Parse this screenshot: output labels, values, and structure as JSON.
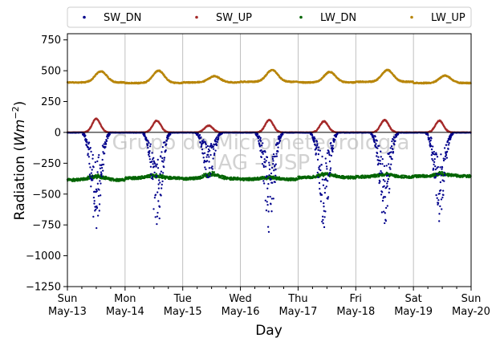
{
  "chart_data": {
    "type": "scatter",
    "xlabel": "Day",
    "ylabel_prefix": "Radiation (",
    "ylabel_unit": "Wm",
    "ylabel_exp": "−2",
    "ylabel_suffix": ")",
    "ylim": [
      -1250,
      800
    ],
    "yticks": [
      750,
      500,
      250,
      0,
      -250,
      -500,
      -750,
      -1000,
      -1250
    ],
    "ytick_labels": [
      "750",
      "500",
      "250",
      "0",
      "−250",
      "−500",
      "−750",
      "−1000",
      "−1250"
    ],
    "xlim": [
      0,
      7
    ],
    "xticks_major": [
      {
        "x": 0,
        "day": "Sun",
        "date": "May-13"
      },
      {
        "x": 1,
        "day": "Mon",
        "date": "May-14"
      },
      {
        "x": 2,
        "day": "Tue",
        "date": "May-15"
      },
      {
        "x": 3,
        "day": "Wed",
        "date": "May-16"
      },
      {
        "x": 4,
        "day": "Thu",
        "date": "May-17"
      },
      {
        "x": 5,
        "day": "Fri",
        "date": "May-18"
      },
      {
        "x": 6,
        "day": "Sat",
        "date": "May-19"
      },
      {
        "x": 7,
        "day": "Sun",
        "date": "May-20"
      }
    ],
    "grid": "x",
    "legend_position": "top",
    "watermark": [
      "Grupo de Micrometeorologia",
      "IAG - USP"
    ],
    "series": [
      {
        "name": "SW_DN",
        "color": "#00008b",
        "base": 0,
        "daily_peak": [
          -830,
          -820,
          -400,
          -810,
          -790,
          -760,
          -720
        ],
        "peak_hour": [
          0.5,
          0.55,
          0.45,
          0.5,
          0.45,
          0.5,
          0.45
        ]
      },
      {
        "name": "SW_UP",
        "color": "#a52a2a",
        "base": 0,
        "daily_peak": [
          110,
          95,
          55,
          100,
          90,
          100,
          95
        ],
        "peak_hour": [
          0.5,
          0.55,
          0.45,
          0.5,
          0.45,
          0.5,
          0.45
        ]
      },
      {
        "name": "LW_DN",
        "color": "#006400",
        "daily_level": [
          -385,
          -370,
          -375,
          -380,
          -365,
          -360,
          -355
        ],
        "day_shift": [
          30,
          20,
          35,
          15,
          25,
          20,
          20
        ]
      },
      {
        "name": "LW_UP",
        "color": "#b8860b",
        "night_level": [
          405,
          400,
          405,
          410,
          405,
          410,
          400
        ],
        "daily_peak": [
          495,
          500,
          455,
          505,
          490,
          505,
          460
        ],
        "peak_hour": [
          0.58,
          0.58,
          0.55,
          0.55,
          0.55,
          0.55,
          0.55
        ]
      }
    ]
  }
}
